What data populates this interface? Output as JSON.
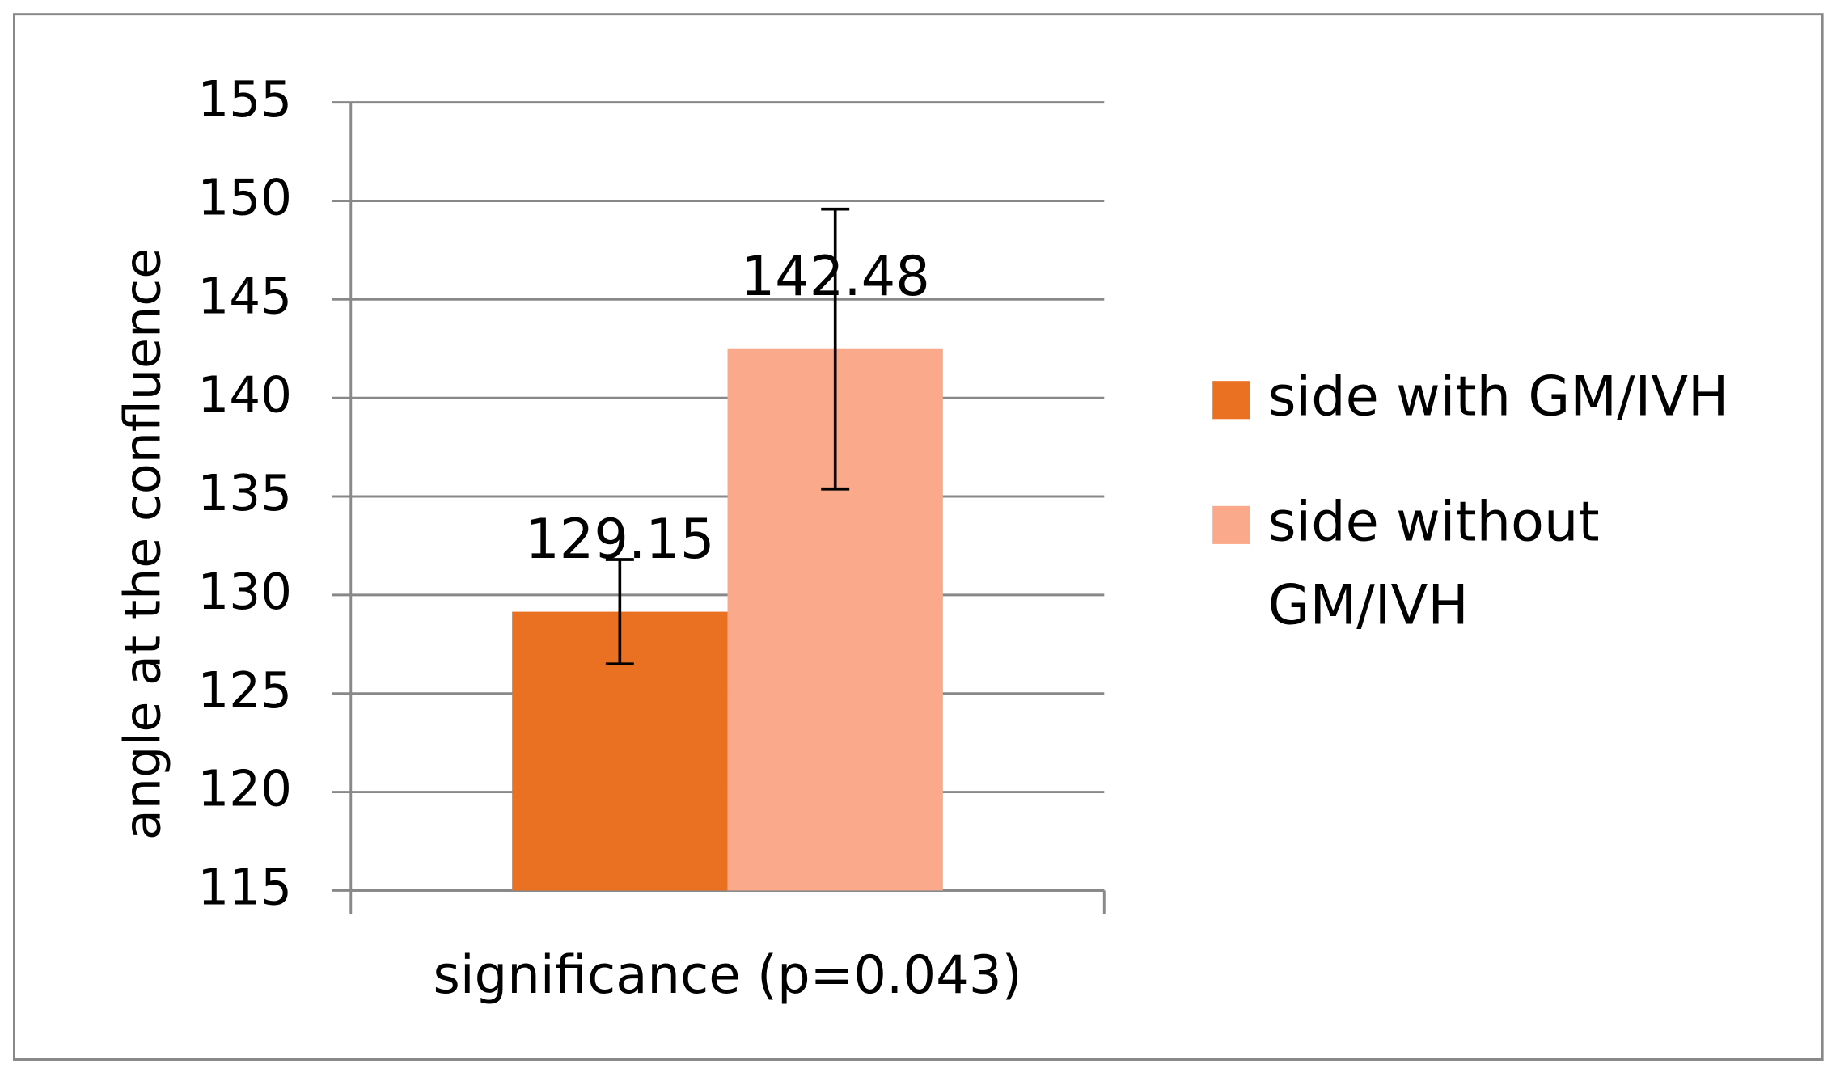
{
  "chart_data": {
    "type": "bar",
    "title_absent": null,
    "x_label": "significance  (p=0.043)",
    "y_label": "angle at the confluence",
    "categories": [
      "significance  (p=0.043)"
    ],
    "series": [
      {
        "name": "side with GM/IVH",
        "color": "#eb7122",
        "values": [
          129.15
        ],
        "errors": [
          2.65
        ]
      },
      {
        "name": "side without GM/IVH",
        "color": "#fba98b",
        "values": [
          142.48
        ],
        "errors": [
          7.1
        ]
      }
    ],
    "ylim": [
      115,
      155
    ],
    "yticks": [
      115,
      120,
      125,
      130,
      135,
      140,
      145,
      150,
      155
    ],
    "grid": true,
    "legend": "right"
  }
}
